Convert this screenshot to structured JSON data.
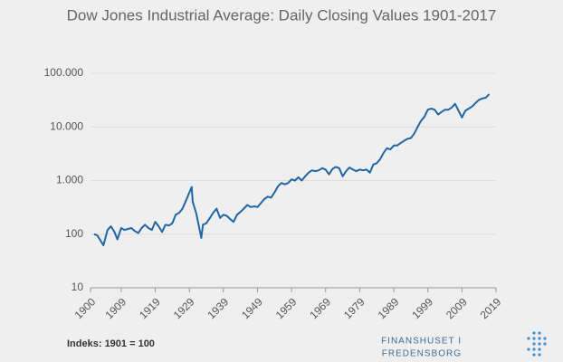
{
  "chart_data": {
    "type": "line",
    "title": "Dow Jones Industrial Average: Daily Closing Values 1901-2017",
    "note": "Indeks: 1901 = 100",
    "logo": [
      "FINANSHUSET I",
      "FREDENSBORG"
    ],
    "log_scale": true,
    "grid": true,
    "xlim": [
      1900,
      2019
    ],
    "xticks": [
      1900,
      1909,
      1919,
      1929,
      1939,
      1949,
      1959,
      1969,
      1979,
      1989,
      1999,
      2009,
      2019
    ],
    "ylim": [
      10,
      100000
    ],
    "yticks": [
      10,
      100,
      {
        "value": 1000,
        "label": "1.000"
      },
      {
        "value": 10000,
        "label": "10.000"
      },
      {
        "value": 100000,
        "label": "100.000"
      }
    ],
    "series": [
      {
        "name": "Dow Jones",
        "color": "#2166a5",
        "x": [
          1901,
          1902,
          1903,
          1903.8,
          1905,
          1906,
          1907,
          1907.9,
          1909,
          1910,
          1911,
          1912,
          1913,
          1914,
          1915,
          1916,
          1917,
          1918,
          1919,
          1920,
          1921,
          1922,
          1923,
          1924,
          1925,
          1926,
          1927,
          1928,
          1929.7,
          1930,
          1931,
          1932.5,
          1933,
          1934,
          1935,
          1936,
          1937,
          1938,
          1939,
          1940,
          1941,
          1942,
          1943,
          1944,
          1945,
          1946,
          1947,
          1948,
          1949,
          1950,
          1951,
          1952,
          1953,
          1954,
          1955,
          1956,
          1957,
          1958,
          1959,
          1960,
          1961,
          1962,
          1963,
          1964,
          1965,
          1966,
          1967,
          1968,
          1969,
          1970,
          1971,
          1972,
          1973,
          1974,
          1975,
          1976,
          1977,
          1978,
          1979,
          1980,
          1981,
          1982,
          1983,
          1984,
          1985,
          1986,
          1987,
          1988,
          1989,
          1990,
          1991,
          1992,
          1993,
          1994,
          1995,
          1996,
          1997,
          1998,
          1999,
          2000,
          2001,
          2002,
          2003,
          2004,
          2005,
          2006,
          2007,
          2008,
          2009,
          2010,
          2011,
          2012,
          2013,
          2014,
          2015,
          2016,
          2017
        ],
        "values": [
          100,
          95,
          75,
          62,
          120,
          140,
          110,
          80,
          130,
          120,
          125,
          130,
          115,
          105,
          130,
          150,
          130,
          120,
          170,
          140,
          110,
          150,
          145,
          160,
          230,
          250,
          300,
          420,
          760,
          400,
          250,
          85,
          150,
          160,
          200,
          250,
          300,
          200,
          230,
          220,
          190,
          170,
          230,
          260,
          300,
          350,
          320,
          330,
          320,
          380,
          450,
          500,
          480,
          600,
          780,
          900,
          850,
          900,
          1050,
          1000,
          1150,
          1000,
          1200,
          1400,
          1550,
          1500,
          1550,
          1700,
          1600,
          1300,
          1650,
          1800,
          1700,
          1200,
          1500,
          1750,
          1600,
          1500,
          1600,
          1550,
          1600,
          1400,
          2000,
          2100,
          2500,
          3300,
          4000,
          3800,
          4500,
          4500,
          5000,
          5500,
          6000,
          6200,
          7500,
          10000,
          13000,
          15500,
          21000,
          22000,
          21000,
          17000,
          19000,
          21000,
          21000,
          23000,
          27000,
          20000,
          15000,
          20000,
          22000,
          24000,
          28000,
          32000,
          34000,
          35000,
          41000
        ]
      }
    ]
  }
}
